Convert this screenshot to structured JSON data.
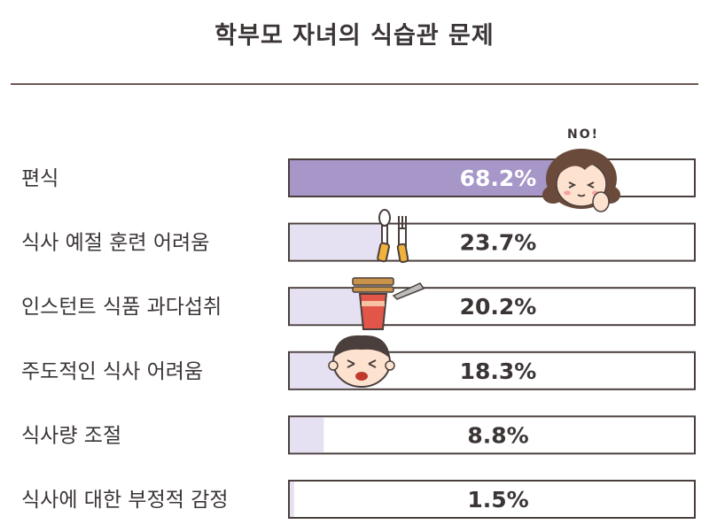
{
  "chart_data": {
    "type": "bar",
    "orientation": "horizontal",
    "title": "학부모 자녀의 식습관 문제",
    "categories": [
      "편식",
      "식사 예절 훈련 어려움",
      "인스턴트 식품 과다섭취",
      "주도적인 식사 어려움",
      "식사량 조절",
      "식사에 대한 부정적 감정"
    ],
    "values": [
      68.2,
      23.7,
      20.2,
      18.3,
      8.8,
      1.5
    ],
    "value_labels": [
      "68.2%",
      "23.7%",
      "20.2%",
      "18.3%",
      "8.8%",
      "1.5%"
    ],
    "unit": "%",
    "xlim": [
      0,
      100
    ],
    "grid": false,
    "legend": "none",
    "colors": {
      "highlight_fill": "#a796c8",
      "light_fill": "#e6e1f2",
      "border": "#4a3f3d",
      "track": "#ffffff"
    },
    "annotation": "NO!"
  },
  "decorations": [
    "girl-refusing-food-icon",
    "spoon-fork-icon",
    "instant-noodle-cup-icon",
    "crying-child-icon"
  ]
}
